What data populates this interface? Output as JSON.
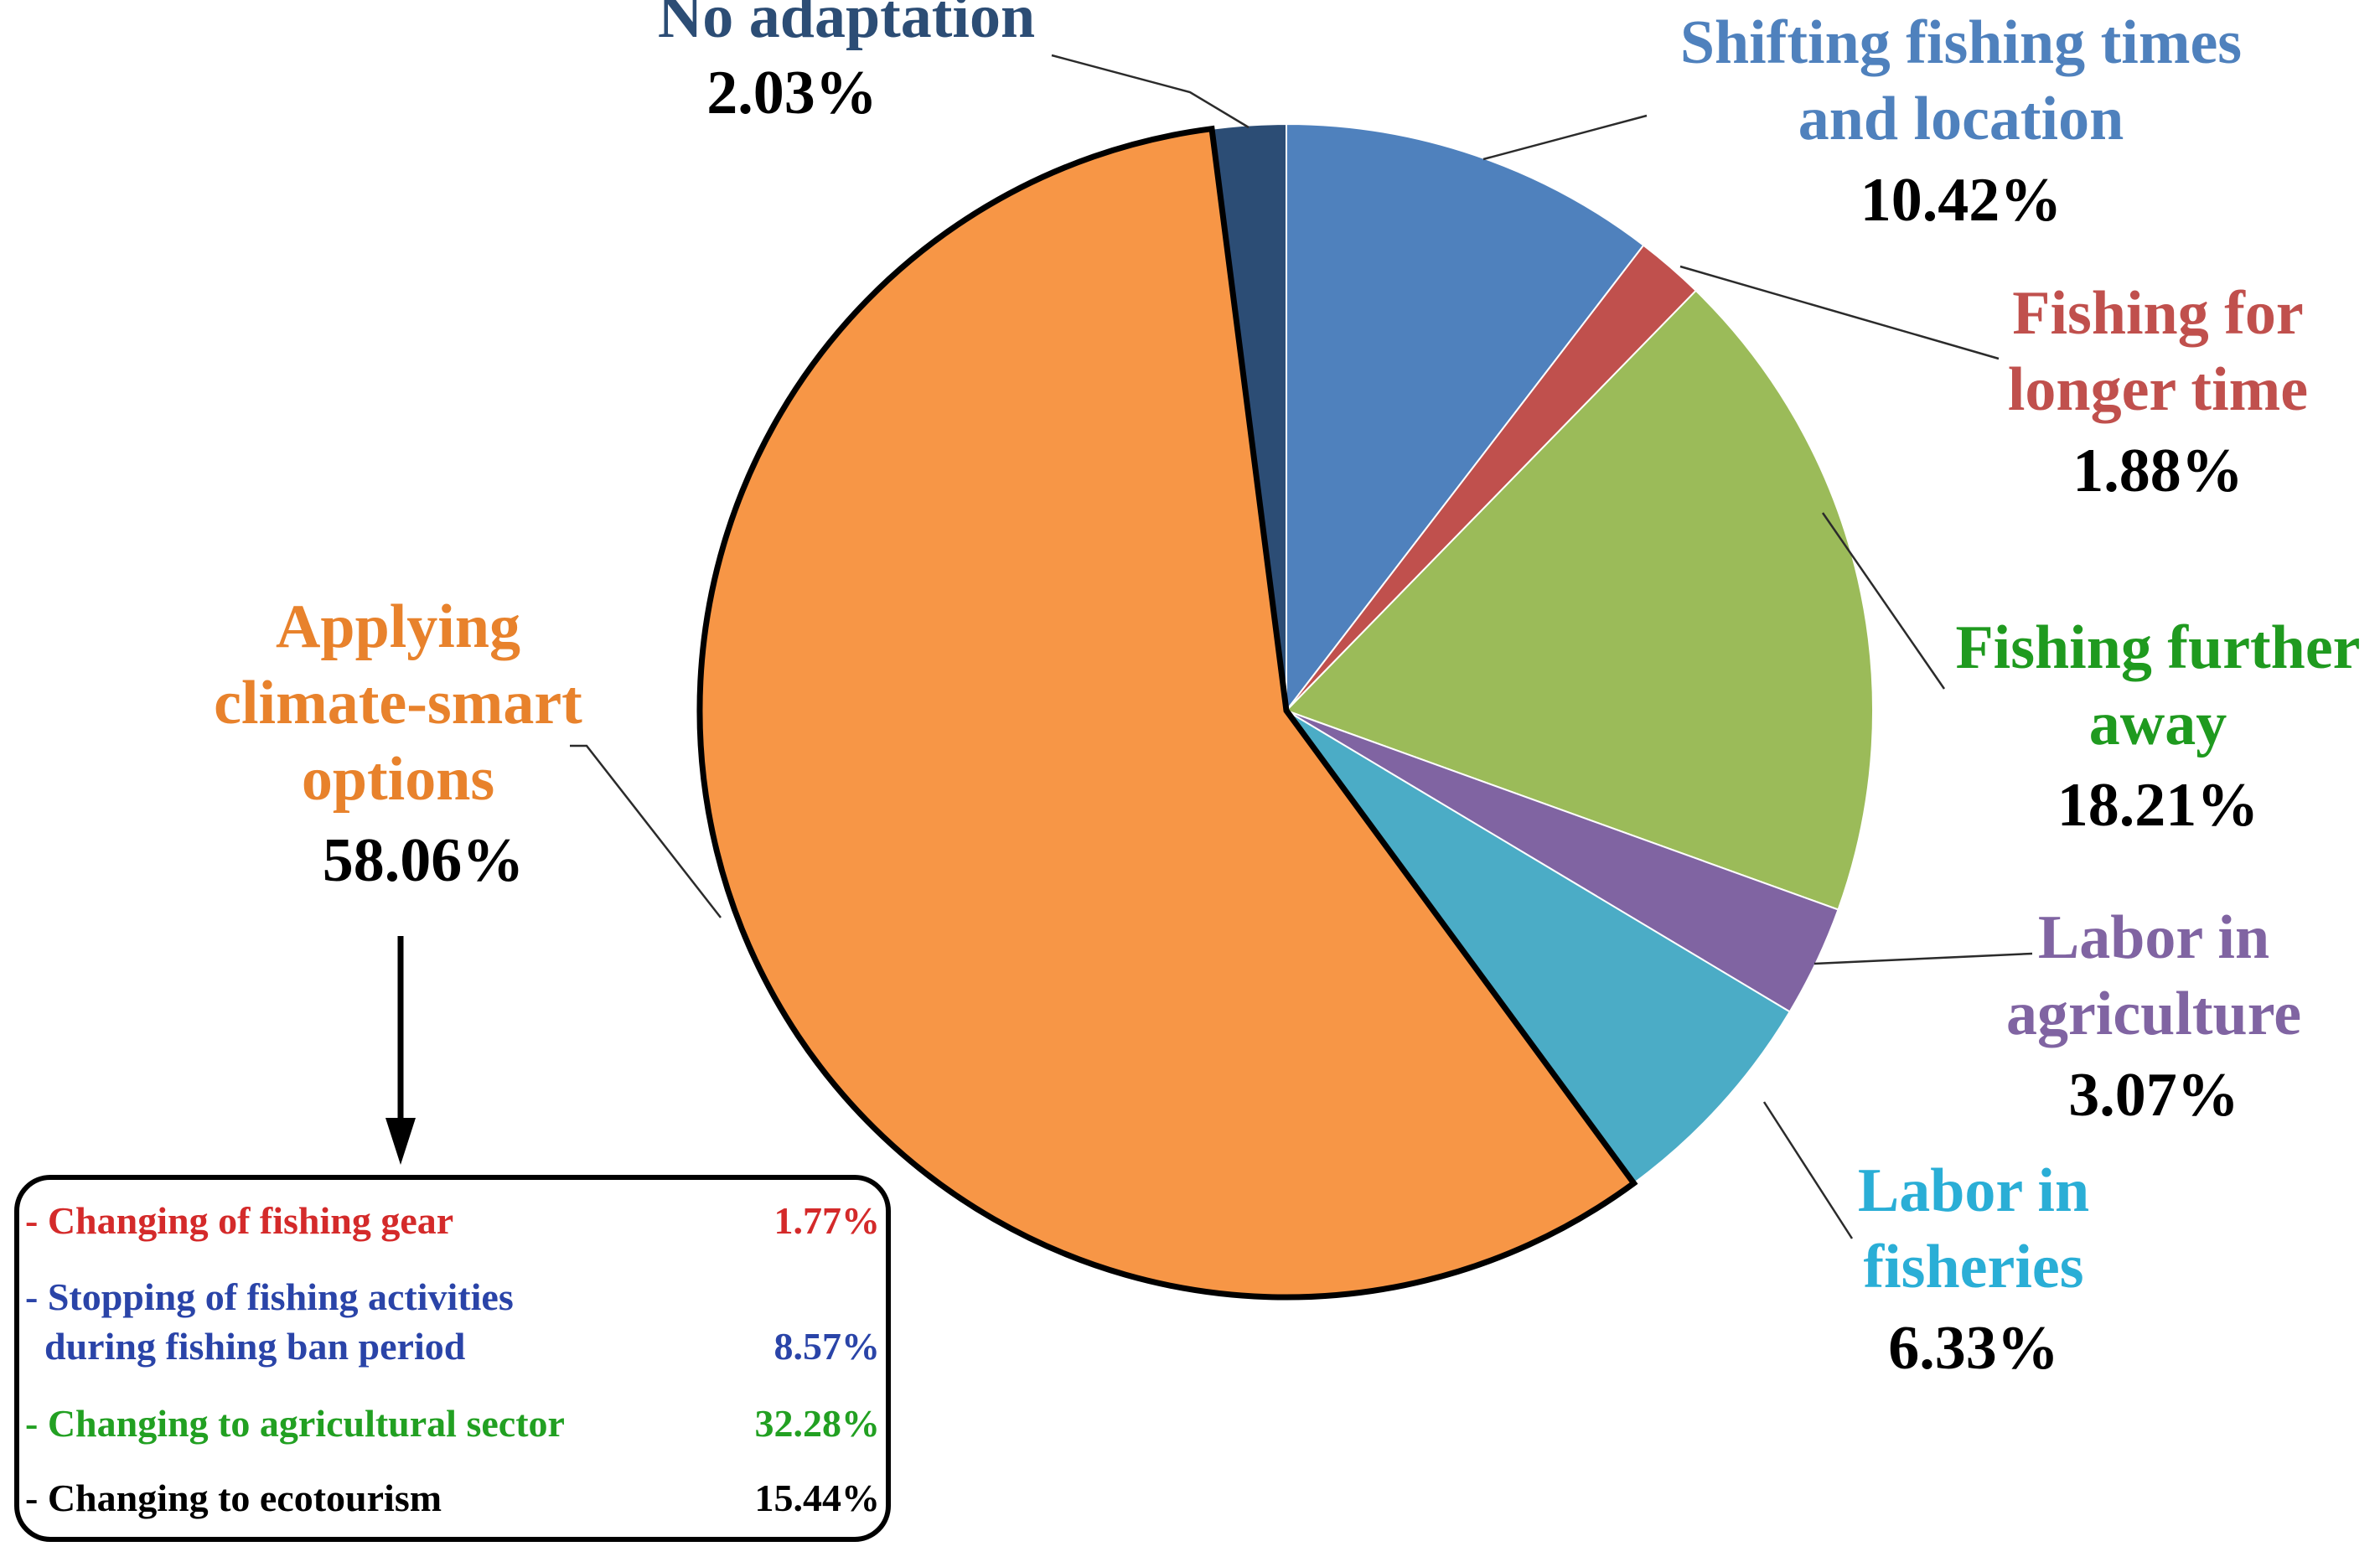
{
  "chart_data": {
    "type": "pie",
    "title": "",
    "slices": [
      {
        "name": "Shifting fishing times and location",
        "lines": [
          "Shifting fishing times",
          "and location"
        ],
        "value": 10.42,
        "pct_label": "10.42%",
        "color": "#4f81bd",
        "label_color": "#4f81bd"
      },
      {
        "name": "Fishing for longer time",
        "lines": [
          "Fishing for",
          "longer time"
        ],
        "value": 1.88,
        "pct_label": "1.88%",
        "color": "#c0504d",
        "label_color": "#c0504d"
      },
      {
        "name": "Fishing further away",
        "lines": [
          "Fishing further",
          "away"
        ],
        "value": 18.21,
        "pct_label": "18.21%",
        "color": "#9bbb59",
        "label_color": "#1f9a1f"
      },
      {
        "name": "Labor in agriculture",
        "lines": [
          "Labor in",
          "agriculture"
        ],
        "value": 3.07,
        "pct_label": "3.07%",
        "color": "#8064a2",
        "label_color": "#8064a2"
      },
      {
        "name": "Labor in fisheries",
        "lines": [
          "Labor in",
          "fisheries"
        ],
        "value": 6.33,
        "pct_label": "6.33%",
        "color": "#4bacc6",
        "label_color": "#2aaed6"
      },
      {
        "name": "Applying climate-smart options",
        "lines": [
          "Applying",
          "climate-smart",
          "options"
        ],
        "value": 58.06,
        "pct_label": "58.06%",
        "color": "#f79646",
        "label_color": "#e8822c",
        "highlighted": true
      },
      {
        "name": "No adaptation",
        "lines": [
          "No adaptation"
        ],
        "value": 2.03,
        "pct_label": "2.03%",
        "color": "#2c4d75",
        "label_color": "#2c4d75"
      }
    ],
    "breakdown": {
      "of": "Applying climate-smart options",
      "items": [
        {
          "lines": [
            "- Changing of fishing gear"
          ],
          "pct_label": "1.77%",
          "color": "#d42a2a"
        },
        {
          "lines": [
            "- Stopping of fishing activities",
            "  during fishing ban period"
          ],
          "pct_label": "8.57%",
          "color": "#2a44a8"
        },
        {
          "lines": [
            "- Changing to agricultural sector"
          ],
          "pct_label": "32.28%",
          "color": "#22a022"
        },
        {
          "lines": [
            "- Changing to ecotourism"
          ],
          "pct_label": "15.44%",
          "color": "#000000"
        }
      ]
    }
  }
}
